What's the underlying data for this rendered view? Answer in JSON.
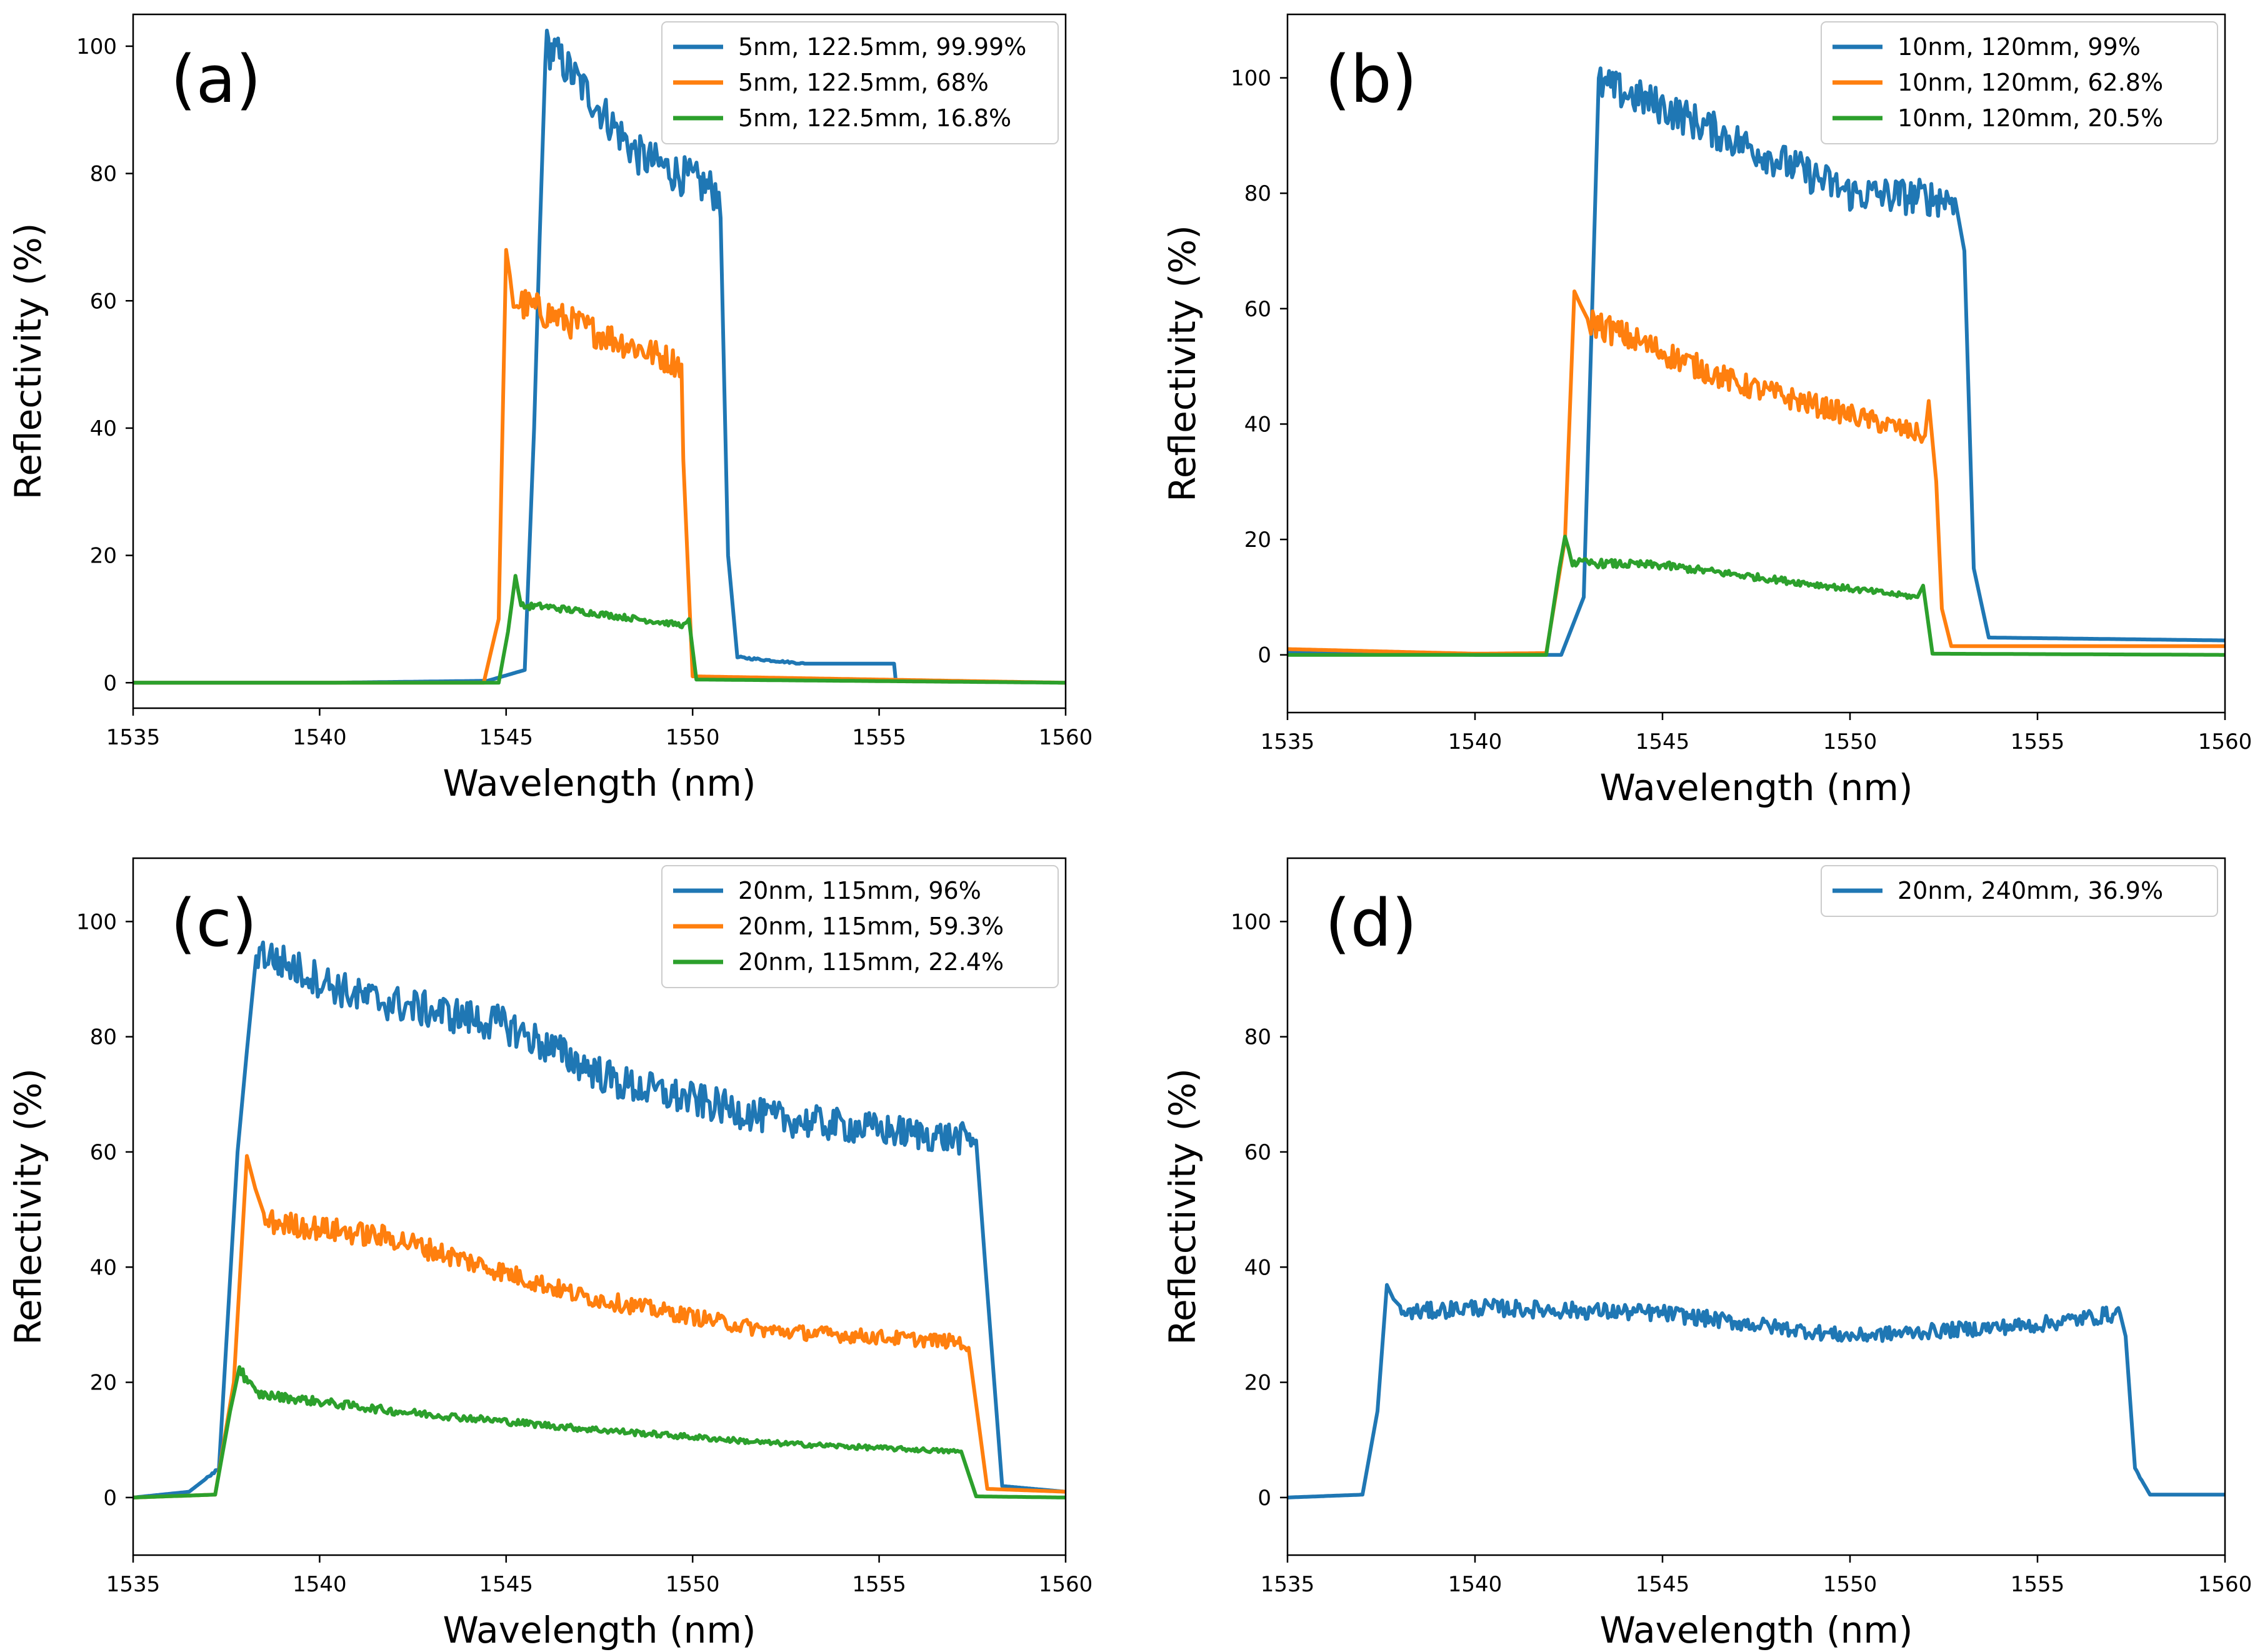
{
  "colors": {
    "c1": "#1f77b4",
    "c2": "#ff7f0e",
    "c3": "#2ca02c"
  },
  "chart_data": [
    {
      "type": "line",
      "panel_label": "(a)",
      "xlabel": "Wavelength (nm)",
      "ylabel": "Reflectivity (%)",
      "xlim": [
        1535,
        1560
      ],
      "ylim": [
        -4,
        105
      ],
      "xticks": [
        1535,
        1540,
        1545,
        1550,
        1555,
        1560
      ],
      "yticks": [
        0,
        20,
        40,
        60,
        80,
        100
      ],
      "legend_position": "top-right",
      "series": [
        {
          "name": "5nm, 122.5mm, 99.99%",
          "color": "#1f77b4",
          "x": [
            1535,
            1540.3,
            1544.5,
            1545.5,
            1545.75,
            1546.05,
            1546.3,
            1548.5,
            1550.7,
            1550.75,
            1550.95,
            1551.2,
            1553,
            1555.4,
            1555.45
          ],
          "y": [
            0,
            0,
            0.3,
            2,
            40,
            100,
            99,
            83,
            77,
            73,
            20,
            4,
            3,
            3,
            0
          ]
        },
        {
          "name": "5nm, 122.5mm, 68%",
          "color": "#ff7f0e",
          "x": [
            1535,
            1544.4,
            1544.8,
            1545,
            1545.2,
            1547,
            1549.7,
            1549.75,
            1550,
            1560
          ],
          "y": [
            0,
            0,
            10,
            68,
            60,
            56,
            50,
            35,
            1,
            0
          ]
        },
        {
          "name": "5nm, 122.5mm, 16.8%",
          "color": "#2ca02c",
          "x": [
            1535,
            1544.8,
            1545.05,
            1545.25,
            1545.4,
            1546,
            1549.8,
            1549.9,
            1550.1,
            1560
          ],
          "y": [
            0,
            0,
            8,
            16.8,
            12,
            12,
            9,
            10,
            0.5,
            0
          ]
        }
      ]
    },
    {
      "type": "line",
      "panel_label": "(b)",
      "xlabel": "Wavelength (nm)",
      "ylabel": "Reflectivity (%)",
      "xlim": [
        1535,
        1560
      ],
      "ylim": [
        -10,
        111
      ],
      "xticks": [
        1535,
        1540,
        1545,
        1550,
        1555,
        1560
      ],
      "yticks": [
        0,
        20,
        40,
        60,
        80,
        100
      ],
      "legend_position": "top-right",
      "series": [
        {
          "name": "10nm, 120mm, 99%",
          "color": "#1f77b4",
          "x": [
            1535,
            1540,
            1542.3,
            1542.9,
            1543.3,
            1545,
            1548,
            1550,
            1552.8,
            1553.05,
            1553.3,
            1553.7,
            1560
          ],
          "y": [
            0.5,
            0,
            0,
            10,
            99,
            95,
            86,
            80,
            79,
            70,
            15,
            3,
            2.5
          ]
        },
        {
          "name": "10nm, 120mm, 62.8%",
          "color": "#ff7f0e",
          "x": [
            1535,
            1540,
            1541.9,
            1542.4,
            1542.65,
            1543,
            1547,
            1552,
            1552.1,
            1552.3,
            1552.45,
            1552.7,
            1560
          ],
          "y": [
            1,
            0.2,
            0.3,
            20,
            63,
            58,
            47,
            38,
            44,
            30,
            8,
            1.5,
            1.5
          ]
        },
        {
          "name": "10nm, 120mm, 20.5%",
          "color": "#2ca02c",
          "x": [
            1535,
            1541.9,
            1542.25,
            1542.4,
            1542.6,
            1545,
            1551.8,
            1551.95,
            1552.2,
            1560
          ],
          "y": [
            0,
            0,
            15,
            20.5,
            16,
            15.5,
            10,
            12,
            0.2,
            0
          ]
        }
      ]
    },
    {
      "type": "line",
      "panel_label": "(c)",
      "xlabel": "Wavelength (nm)",
      "ylabel": "Reflectivity (%)",
      "xlim": [
        1535,
        1560
      ],
      "ylim": [
        -10,
        111
      ],
      "xticks": [
        1535,
        1540,
        1545,
        1550,
        1555,
        1560
      ],
      "yticks": [
        0,
        20,
        40,
        60,
        80,
        100
      ],
      "legend_position": "top-right",
      "series": [
        {
          "name": "20nm, 115mm, 96%",
          "color": "#1f77b4",
          "x": [
            1535,
            1536.5,
            1537.3,
            1537.8,
            1538.3,
            1541,
            1545,
            1548,
            1552,
            1557.6,
            1557.85,
            1558.3,
            1560
          ],
          "y": [
            0,
            1,
            5,
            60,
            95,
            87,
            82,
            72,
            66,
            62,
            40,
            2,
            1
          ]
        },
        {
          "name": "20nm, 115mm, 59.3%",
          "color": "#ff7f0e",
          "x": [
            1535,
            1537.2,
            1537.7,
            1538.05,
            1538.5,
            1542,
            1547,
            1552,
            1557.2,
            1557.4,
            1557.9,
            1560
          ],
          "y": [
            0,
            0.5,
            20,
            59.3,
            48,
            45,
            35,
            29,
            27,
            26,
            1.5,
            1
          ]
        },
        {
          "name": "20nm, 115mm, 22.4%",
          "color": "#2ca02c",
          "x": [
            1535,
            1537.2,
            1537.6,
            1537.85,
            1538.3,
            1542,
            1547,
            1552,
            1557,
            1557.2,
            1557.6,
            1560
          ],
          "y": [
            0,
            0.5,
            15,
            22.4,
            18,
            15,
            12,
            9.5,
            8,
            8,
            0.2,
            0
          ]
        }
      ]
    },
    {
      "type": "line",
      "panel_label": "(d)",
      "xlabel": "Wavelength (nm)",
      "ylabel": "Reflectivity (%)",
      "xlim": [
        1535,
        1560
      ],
      "ylim": [
        -10,
        111
      ],
      "xticks": [
        1535,
        1540,
        1545,
        1550,
        1555,
        1560
      ],
      "yticks": [
        0,
        20,
        40,
        60,
        80,
        100
      ],
      "legend_position": "top-right",
      "series": [
        {
          "name": "20nm, 240mm, 36.9%",
          "color": "#1f77b4",
          "x": [
            1535,
            1537,
            1537.4,
            1537.65,
            1538,
            1540,
            1545,
            1550,
            1555,
            1557.2,
            1557.35,
            1557.6,
            1558,
            1560
          ],
          "y": [
            0,
            0.5,
            15,
            36.9,
            32,
            33,
            32,
            28,
            30,
            32,
            28,
            5,
            0.5,
            0.5
          ]
        }
      ]
    }
  ]
}
